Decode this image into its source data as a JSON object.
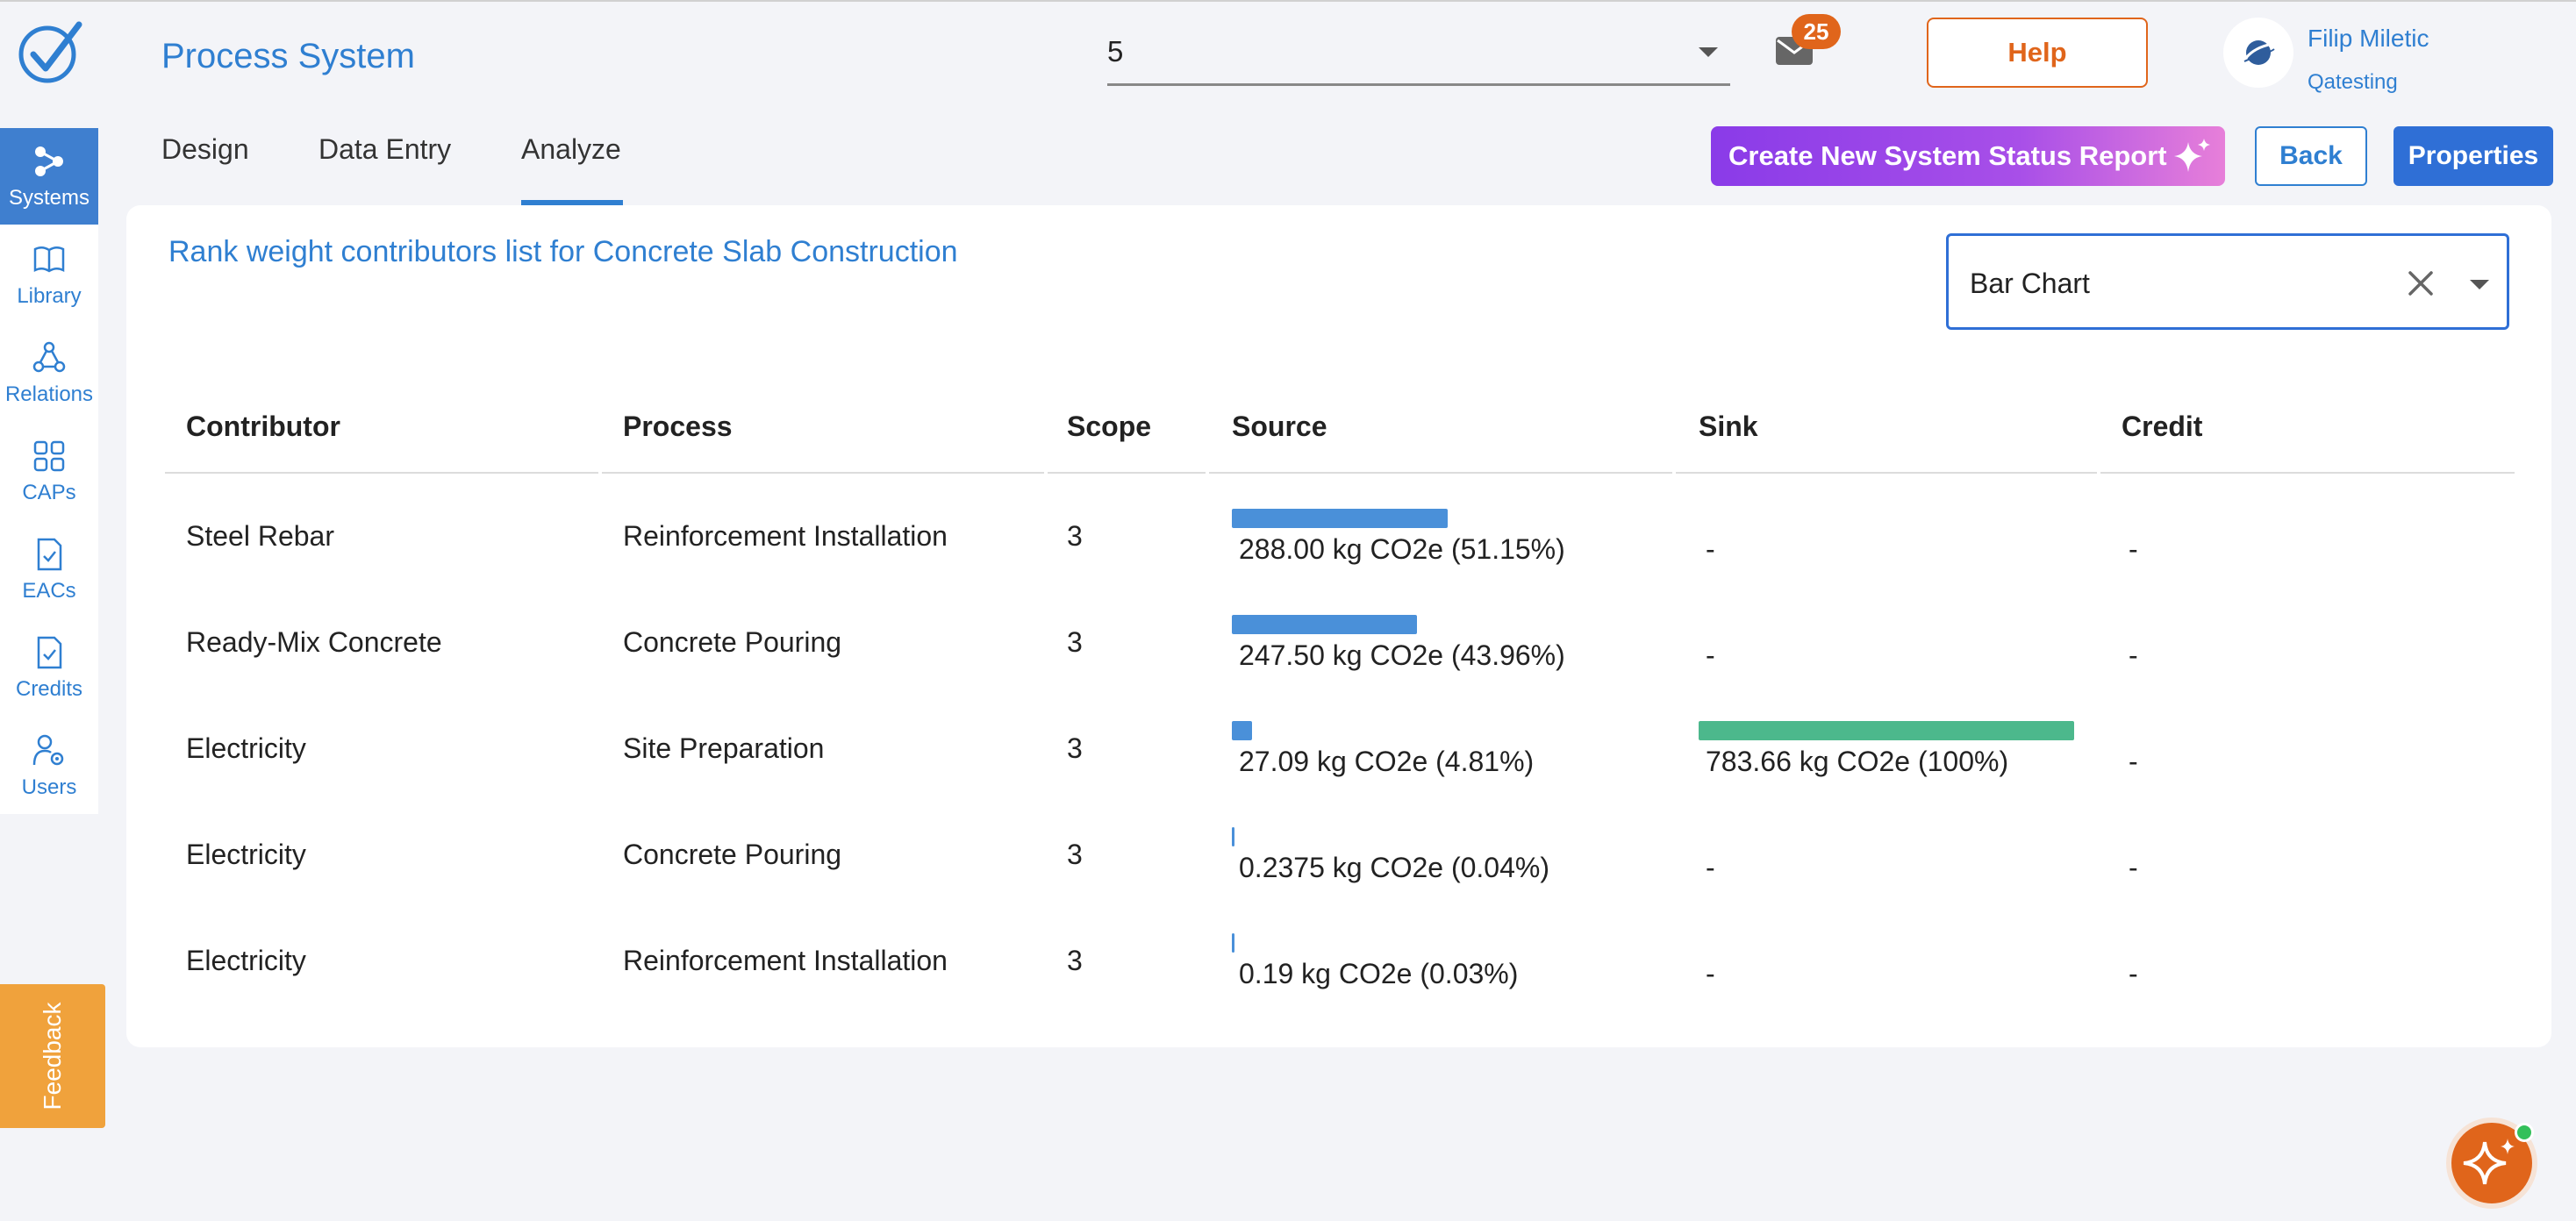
{
  "header": {
    "app_title": "Process System",
    "version_value": "5",
    "mail_count": "25",
    "help_label": "Help",
    "user_name": "Filip Miletic",
    "user_org": "Qatesting"
  },
  "sidebar": {
    "items": [
      {
        "label": "Systems",
        "icon": "systems-icon"
      },
      {
        "label": "Library",
        "icon": "book-icon"
      },
      {
        "label": "Relations",
        "icon": "relations-icon"
      },
      {
        "label": "CAPs",
        "icon": "grid-icon"
      },
      {
        "label": "EACs",
        "icon": "document-check-icon"
      },
      {
        "label": "Credits",
        "icon": "document-check-icon"
      },
      {
        "label": "Users",
        "icon": "users-gear-icon"
      }
    ],
    "feedback_label": "Feedback"
  },
  "tabs": [
    {
      "label": "Design"
    },
    {
      "label": "Data Entry"
    },
    {
      "label": "Analyze"
    }
  ],
  "toolbar": {
    "report_label": "Create New System Status Report",
    "back_label": "Back",
    "properties_label": "Properties"
  },
  "content": {
    "title": "Rank weight contributors list for Concrete Slab Construction",
    "chart_type_value": "Bar Chart"
  },
  "table": {
    "headers": [
      "Contributor",
      "Process",
      "Scope",
      "Source",
      "Sink",
      "Credit"
    ],
    "rows": [
      {
        "contributor": "Steel Rebar",
        "process": "Reinforcement Installation",
        "scope": "3",
        "source": "288.00 kg CO2e (51.15%)",
        "source_pct": 51.15,
        "sink": "-",
        "sink_pct": 0,
        "credit": "-"
      },
      {
        "contributor": "Ready-Mix Concrete",
        "process": "Concrete Pouring",
        "scope": "3",
        "source": "247.50 kg CO2e (43.96%)",
        "source_pct": 43.96,
        "sink": "-",
        "sink_pct": 0,
        "credit": "-"
      },
      {
        "contributor": "Electricity",
        "process": "Site Preparation",
        "scope": "3",
        "source": "27.09 kg CO2e (4.81%)",
        "source_pct": 4.81,
        "sink": "783.66 kg CO2e (100%)",
        "sink_pct": 100,
        "credit": "-"
      },
      {
        "contributor": "Electricity",
        "process": "Concrete Pouring",
        "scope": "3",
        "source": "0.2375 kg CO2e (0.04%)",
        "source_pct": 0.04,
        "sink": "-",
        "sink_pct": 0,
        "credit": "-"
      },
      {
        "contributor": "Electricity",
        "process": "Reinforcement Installation",
        "scope": "3",
        "source": "0.19 kg CO2e (0.03%)",
        "source_pct": 0.03,
        "sink": "-",
        "sink_pct": 0,
        "credit": "-"
      }
    ]
  },
  "colors": {
    "accent": "#2f7fd1",
    "source_bar": "#4a90d9",
    "sink_bar": "#4cb88c",
    "help": "#e0651b"
  }
}
